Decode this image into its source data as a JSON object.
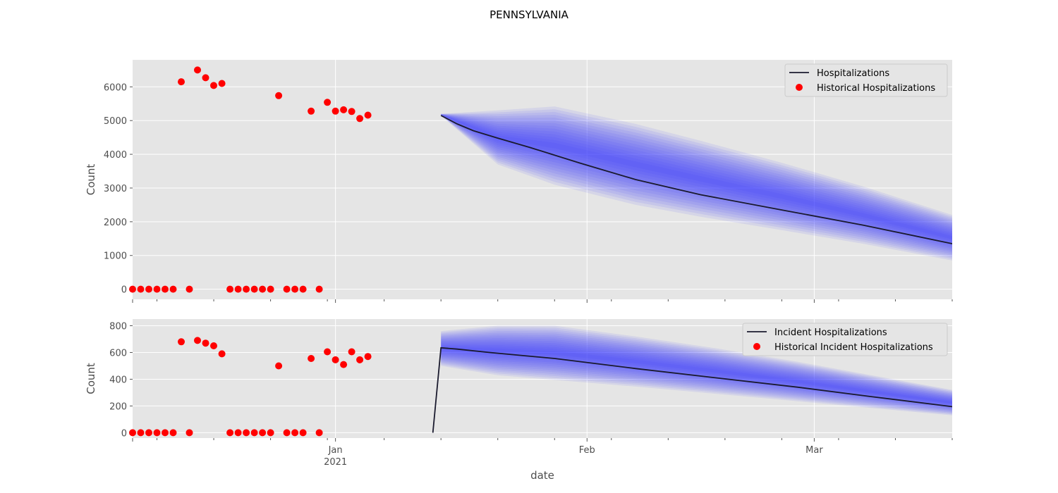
{
  "figure": {
    "title": "PENNSYLVANIA",
    "xlabel": "date",
    "background": "#ffffff",
    "axes_facecolor": "#e5e5e5",
    "grid": true
  },
  "chart_data": [
    {
      "type": "line",
      "ylabel": "Count",
      "xlim": [
        "2020-12-07",
        "2021-03-18"
      ],
      "ylim": [
        -300,
        6800
      ],
      "yticks": [
        0,
        1000,
        2000,
        3000,
        4000,
        5000,
        6000
      ],
      "ytick_labels": [
        "0",
        "1000",
        "2000",
        "3000",
        "4000",
        "5000",
        "6000"
      ],
      "legend": {
        "placement": "top-right",
        "entries": [
          "Hospitalizations",
          "Historical Hospitalizations"
        ]
      },
      "series": [
        {
          "name": "Hospitalizations",
          "kind": "line",
          "color": "#1a1a2e",
          "x": [
            "2021-01-14",
            "2021-01-16",
            "2021-01-18",
            "2021-01-21",
            "2021-01-25",
            "2021-01-31",
            "2021-02-07",
            "2021-02-15",
            "2021-02-25",
            "2021-03-07",
            "2021-03-18"
          ],
          "y": [
            5150,
            4900,
            4700,
            4480,
            4200,
            3750,
            3250,
            2800,
            2350,
            1900,
            1350
          ]
        },
        {
          "name": "Historical Hospitalizations",
          "kind": "scatter",
          "color": "#ff0000",
          "x": [
            "2020-12-07",
            "2020-12-08",
            "2020-12-09",
            "2020-12-10",
            "2020-12-11",
            "2020-12-12",
            "2020-12-13",
            "2020-12-14",
            "2020-12-15",
            "2020-12-16",
            "2020-12-17",
            "2020-12-18",
            "2020-12-19",
            "2020-12-20",
            "2020-12-21",
            "2020-12-22",
            "2020-12-23",
            "2020-12-24",
            "2020-12-25",
            "2020-12-26",
            "2020-12-27",
            "2020-12-28",
            "2020-12-29",
            "2020-12-30",
            "2020-12-31",
            "2021-01-01",
            "2021-01-02",
            "2021-01-03",
            "2021-01-04",
            "2021-01-05",
            "2021-01-06",
            "2021-01-07",
            "2021-01-08",
            "2021-01-09",
            "2021-01-10",
            "2021-01-11",
            "2021-01-12",
            "2021-01-13"
          ],
          "y": [
            0,
            0,
            0,
            0,
            0,
            0,
            6150,
            0,
            6500,
            6270,
            6040,
            6100,
            0,
            0,
            0,
            0,
            0,
            0,
            5740,
            0,
            0,
            0,
            5280,
            0,
            5540,
            5280,
            5320,
            5270,
            5060,
            5160,
            null,
            null,
            null,
            null,
            null,
            null,
            null,
            null
          ]
        }
      ],
      "uncertainty_band": {
        "color": "#3333ff",
        "x": [
          "2021-01-14",
          "2021-01-21",
          "2021-01-28",
          "2021-02-07",
          "2021-02-15",
          "2021-02-25",
          "2021-03-07",
          "2021-03-18"
        ],
        "lower": [
          5150,
          3700,
          3100,
          2500,
          2150,
          1750,
          1350,
          850
        ],
        "upper": [
          5200,
          5300,
          5420,
          4900,
          4400,
          3750,
          3050,
          2200
        ]
      }
    },
    {
      "type": "line",
      "ylabel": "Count",
      "xlim": [
        "2020-12-07",
        "2021-03-18"
      ],
      "ylim": [
        -40,
        850
      ],
      "yticks": [
        0,
        200,
        400,
        600,
        800
      ],
      "ytick_labels": [
        "0",
        "200",
        "400",
        "600",
        "800"
      ],
      "xticks": [
        "2021-01-01",
        "2021-02-01",
        "2021-03-01"
      ],
      "xtick_labels": [
        [
          "Jan",
          "2021"
        ],
        [
          "Feb",
          ""
        ],
        [
          "Mar",
          ""
        ]
      ],
      "legend": {
        "placement": "top-right",
        "entries": [
          "Incident Hospitalizations",
          "Historical Incident Hospitalizations"
        ]
      },
      "series": [
        {
          "name": "Incident Hospitalizations",
          "kind": "line",
          "color": "#1a1a2e",
          "x": [
            "2021-01-13",
            "2021-01-14",
            "2021-01-16",
            "2021-01-20",
            "2021-01-28",
            "2021-02-07",
            "2021-02-17",
            "2021-02-27",
            "2021-03-08",
            "2021-03-18"
          ],
          "y": [
            0,
            635,
            625,
            600,
            555,
            480,
            410,
            340,
            270,
            195
          ]
        },
        {
          "name": "Historical Incident Hospitalizations",
          "kind": "scatter",
          "color": "#ff0000",
          "x": [
            "2020-12-07",
            "2020-12-08",
            "2020-12-09",
            "2020-12-10",
            "2020-12-11",
            "2020-12-12",
            "2020-12-13",
            "2020-12-14",
            "2020-12-15",
            "2020-12-16",
            "2020-12-17",
            "2020-12-18",
            "2020-12-19",
            "2020-12-20",
            "2020-12-21",
            "2020-12-22",
            "2020-12-23",
            "2020-12-24",
            "2020-12-25",
            "2020-12-26",
            "2020-12-27",
            "2020-12-28",
            "2020-12-29",
            "2020-12-30",
            "2020-12-31",
            "2021-01-01",
            "2021-01-02",
            "2021-01-03",
            "2021-01-04",
            "2021-01-05"
          ],
          "y": [
            0,
            0,
            0,
            0,
            0,
            0,
            680,
            0,
            690,
            670,
            650,
            590,
            0,
            0,
            0,
            0,
            0,
            0,
            500,
            0,
            0,
            0,
            555,
            0,
            605,
            545,
            510,
            605,
            545,
            570
          ]
        }
      ],
      "uncertainty_band": {
        "color": "#3333ff",
        "x": [
          "2021-01-14",
          "2021-01-21",
          "2021-01-28",
          "2021-02-07",
          "2021-02-17",
          "2021-02-27",
          "2021-03-08",
          "2021-03-18"
        ],
        "lower": [
          500,
          430,
          395,
          345,
          290,
          235,
          185,
          130
        ],
        "upper": [
          760,
          800,
          800,
          720,
          630,
          530,
          430,
          320
        ]
      }
    }
  ]
}
